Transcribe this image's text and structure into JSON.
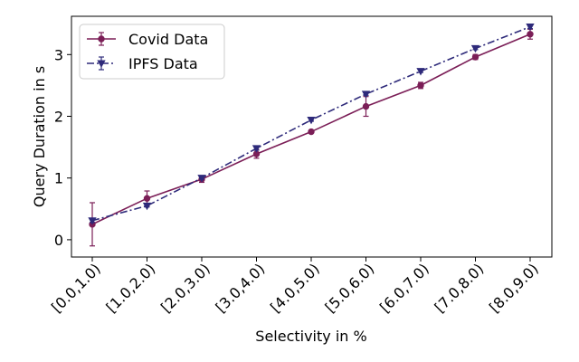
{
  "chart_data": {
    "type": "line",
    "title": "",
    "xlabel": "Selectivity in %",
    "ylabel": "Query Duration in s",
    "categories": [
      "[0.0,1.0)",
      "[1.0,2.0)",
      "[2.0,3.0)",
      "[3.0,4.0)",
      "[4.0,5.0)",
      "[5.0,6.0)",
      "[6.0,7.0)",
      "[7.0,8.0)",
      "[8.0,9.0)"
    ],
    "ylim": [
      -0.28,
      3.62
    ],
    "yticks": [
      0,
      1,
      2,
      3
    ],
    "grid": false,
    "legend_position": "top-left",
    "series": [
      {
        "name": "Covid Data",
        "color": "#7b1e57",
        "marker": "circle",
        "linestyle": "solid",
        "values": [
          0.25,
          0.67,
          0.98,
          1.39,
          1.75,
          2.16,
          2.5,
          2.96,
          3.33
        ],
        "errors": [
          0.35,
          0.12,
          0.05,
          0.07,
          0.02,
          0.16,
          0.05,
          0.04,
          0.08
        ]
      },
      {
        "name": "IPFS Data",
        "color": "#2e2a7a",
        "marker": "triangle-down",
        "linestyle": "dashdot",
        "values": [
          0.31,
          0.55,
          1.0,
          1.48,
          1.94,
          2.36,
          2.73,
          3.1,
          3.45
        ],
        "errors": [
          0.03,
          0.02,
          0.02,
          0.03,
          0.02,
          0.02,
          0.02,
          0.02,
          0.03
        ]
      }
    ]
  }
}
